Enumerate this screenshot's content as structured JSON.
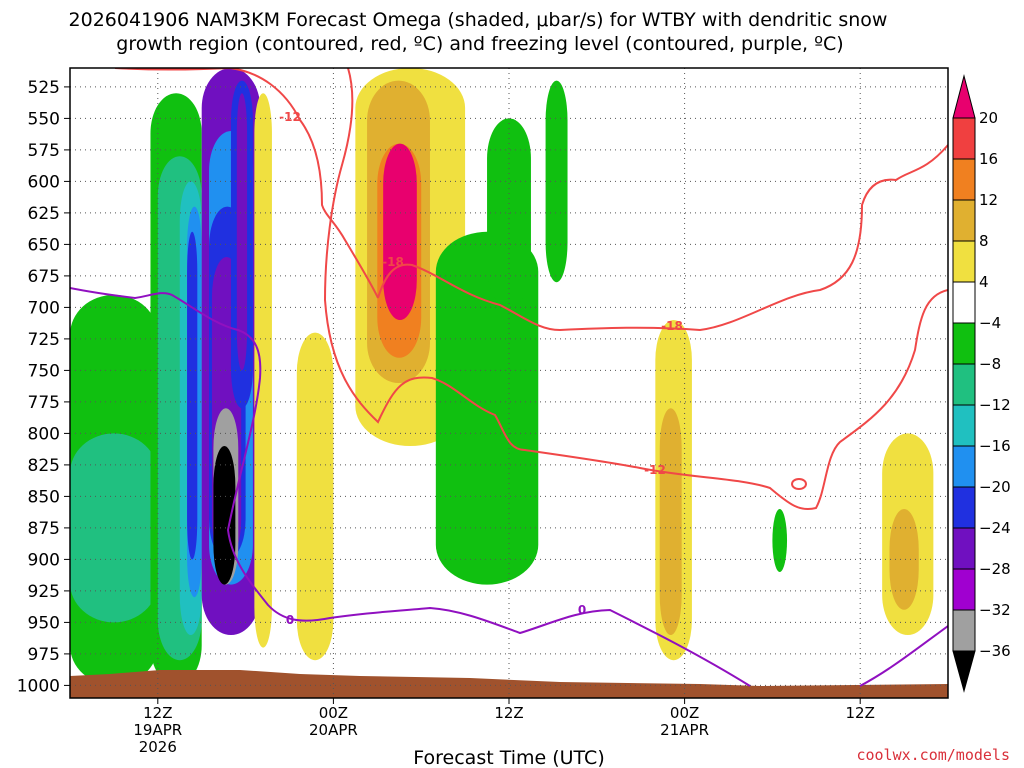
{
  "chart_data": {
    "type": "heatmap",
    "title_line1": "2026041906 NAM3KM Forecast Omega (shaded, μbar/s) for WTBY with dendritic snow",
    "title_line2": "growth region (contoured, red, ºC) and freezing level (contoured, purple, ºC)",
    "xlabel": "Forecast Time (UTC)",
    "credit": "coolwx.com/models",
    "x_range_hours": [
      0,
      60
    ],
    "x_ticks": [
      {
        "hour": 6,
        "lines": [
          "12Z",
          "19APR",
          "2026"
        ]
      },
      {
        "hour": 18,
        "lines": [
          "00Z",
          "20APR"
        ]
      },
      {
        "hour": 30,
        "lines": [
          "12Z"
        ]
      },
      {
        "hour": 42,
        "lines": [
          "00Z",
          "21APR"
        ]
      },
      {
        "hour": 54,
        "lines": [
          "12Z"
        ]
      }
    ],
    "y_range_hpa": [
      1010,
      510
    ],
    "y_ticks": [
      "525",
      "550",
      "575",
      "600",
      "625",
      "650",
      "675",
      "700",
      "725",
      "750",
      "775",
      "800",
      "825",
      "850",
      "875",
      "900",
      "925",
      "950",
      "975",
      "1000"
    ],
    "grid": true,
    "colorbar": {
      "levels": [
        "20",
        "16",
        "12",
        "8",
        "4",
        "−4",
        "−8",
        "−12",
        "−16",
        "−20",
        "−24",
        "−28",
        "−32",
        "−36"
      ],
      "colors": [
        "#e8006e",
        "#f04040",
        "#f08020",
        "#e0b030",
        "#f0e040",
        "#ffffff",
        "#10c010",
        "#20c080",
        "#20c0c0",
        "#2090f0",
        "#2030e0",
        "#7010c0",
        "#a000d0",
        "#a0a0a0",
        "#000000"
      ]
    },
    "contours": [
      {
        "name": "dgz",
        "color": "#f04848",
        "labels": [
          "-12",
          "-18",
          "-18",
          "-12"
        ]
      },
      {
        "name": "freezing-level",
        "color": "#9010c0",
        "labels": [
          "0",
          "0"
        ]
      }
    ],
    "omega_blobs": [
      {
        "color": "#10c010",
        "t": [
          0,
          6
        ],
        "p": [
          690,
          1000
        ]
      },
      {
        "color": "#20c080",
        "t": [
          0,
          6
        ],
        "p": [
          800,
          950
        ]
      },
      {
        "color": "#10c010",
        "t": [
          5.5,
          9
        ],
        "p": [
          530,
          1000
        ]
      },
      {
        "color": "#20c080",
        "t": [
          6,
          9
        ],
        "p": [
          580,
          980
        ]
      },
      {
        "color": "#20c0c0",
        "t": [
          7.5,
          9
        ],
        "p": [
          600,
          960
        ]
      },
      {
        "color": "#2090f0",
        "t": [
          8,
          9
        ],
        "p": [
          620,
          930
        ]
      },
      {
        "color": "#2030e0",
        "t": [
          8,
          8.7
        ],
        "p": [
          640,
          900
        ]
      },
      {
        "color": "#7010c0",
        "t": [
          9,
          13
        ],
        "p": [
          510,
          960
        ]
      },
      {
        "color": "#2090f0",
        "t": [
          9.5,
          12.5
        ],
        "p": [
          560,
          920
        ]
      },
      {
        "color": "#2030e0",
        "t": [
          9.5,
          12
        ],
        "p": [
          620,
          900
        ]
      },
      {
        "color": "#7010c0",
        "t": [
          9.7,
          11.7
        ],
        "p": [
          660,
          900
        ]
      },
      {
        "color": "#a0a0a0",
        "t": [
          9.8,
          11.5
        ],
        "p": [
          780,
          920
        ]
      },
      {
        "color": "#000000",
        "t": [
          9.8,
          11.3
        ],
        "p": [
          810,
          920
        ]
      },
      {
        "color": "#2030e0",
        "t": [
          11,
          12.5
        ],
        "p": [
          520,
          780
        ]
      },
      {
        "color": "#7010c0",
        "t": [
          11.4,
          12.1
        ],
        "p": [
          530,
          750
        ]
      },
      {
        "color": "#f0e040",
        "t": [
          12.6,
          13.8
        ],
        "p": [
          530,
          970
        ]
      },
      {
        "color": "#f0e040",
        "t": [
          15.5,
          18
        ],
        "p": [
          720,
          980
        ]
      },
      {
        "color": "#f0e040",
        "t": [
          19.5,
          27
        ],
        "p": [
          510,
          810
        ]
      },
      {
        "color": "#e0b030",
        "t": [
          20.3,
          24.6
        ],
        "p": [
          520,
          760
        ]
      },
      {
        "color": "#f08020",
        "t": [
          21,
          24
        ],
        "p": [
          570,
          740
        ]
      },
      {
        "color": "#e8006e",
        "t": [
          21.4,
          23.7
        ],
        "p": [
          570,
          710
        ]
      },
      {
        "color": "#10c010",
        "t": [
          25,
          32
        ],
        "p": [
          640,
          920
        ]
      },
      {
        "color": "#10c010",
        "t": [
          28.5,
          31.5
        ],
        "p": [
          550,
          700
        ]
      },
      {
        "color": "#10c010",
        "t": [
          32.5,
          34
        ],
        "p": [
          520,
          680
        ]
      },
      {
        "color": "#f0e040",
        "t": [
          40,
          42.5
        ],
        "p": [
          710,
          980
        ]
      },
      {
        "color": "#e0b030",
        "t": [
          40.3,
          41.8
        ],
        "p": [
          780,
          960
        ]
      },
      {
        "color": "#10c010",
        "t": [
          48,
          49
        ],
        "p": [
          860,
          910
        ]
      },
      {
        "color": "#f0e040",
        "t": [
          55.5,
          59
        ],
        "p": [
          800,
          960
        ]
      },
      {
        "color": "#e0b030",
        "t": [
          56,
          58
        ],
        "p": [
          860,
          940
        ]
      }
    ]
  }
}
